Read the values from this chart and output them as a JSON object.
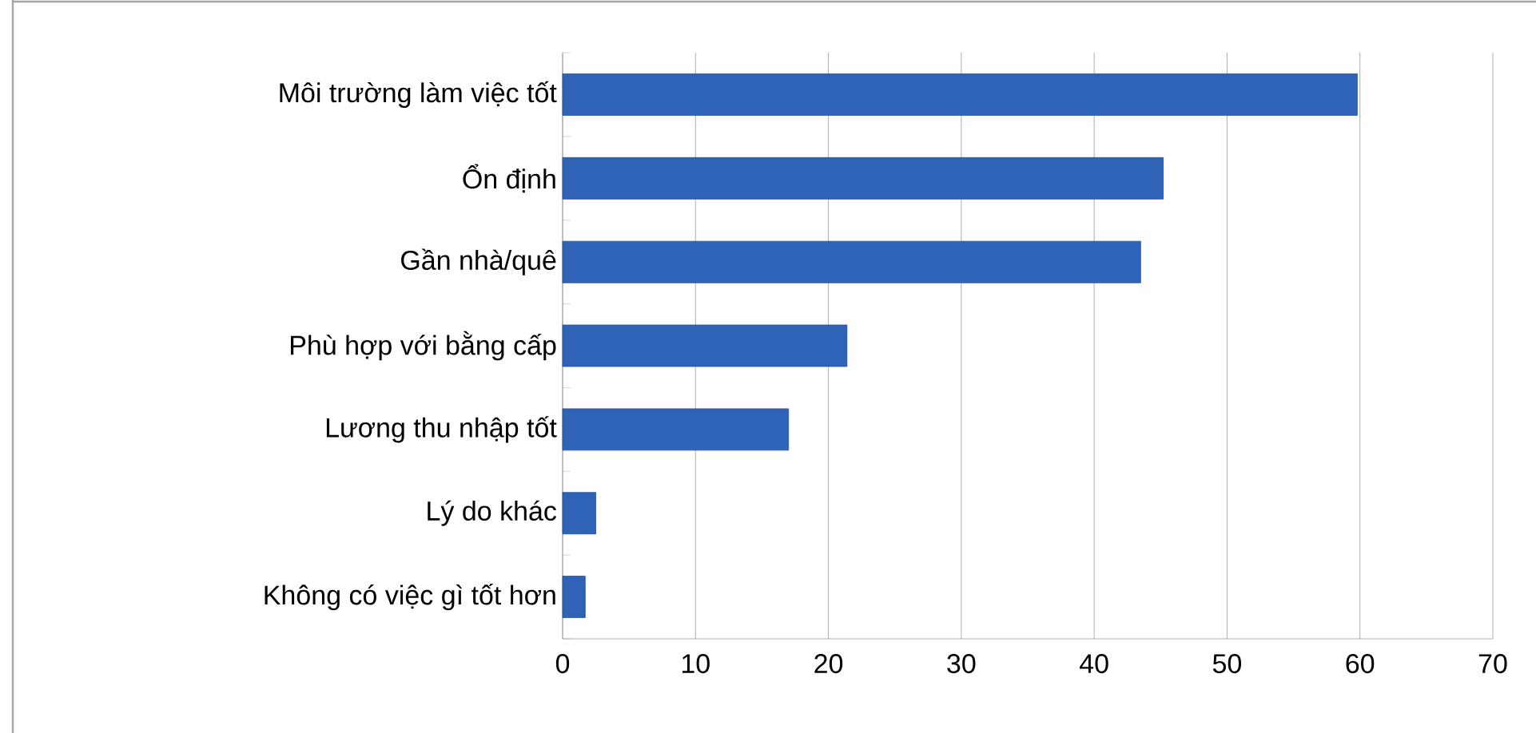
{
  "chart_data": {
    "type": "bar",
    "orientation": "horizontal",
    "categories": [
      "Môi trường làm việc tốt",
      "Ổn định",
      "Gần nhà/quê",
      "Phù hợp với bằng cấp",
      "Lương thu nhập tốt",
      "Lý do khác",
      "Không có việc gì tốt hơn"
    ],
    "values": [
      59.8,
      45.2,
      43.5,
      21.4,
      17.0,
      2.5,
      1.7
    ],
    "color": "#2e63b8",
    "xlim": [
      0,
      70
    ],
    "xticks": [
      0,
      10,
      20,
      30,
      40,
      50,
      60,
      70
    ],
    "grid": "x"
  }
}
